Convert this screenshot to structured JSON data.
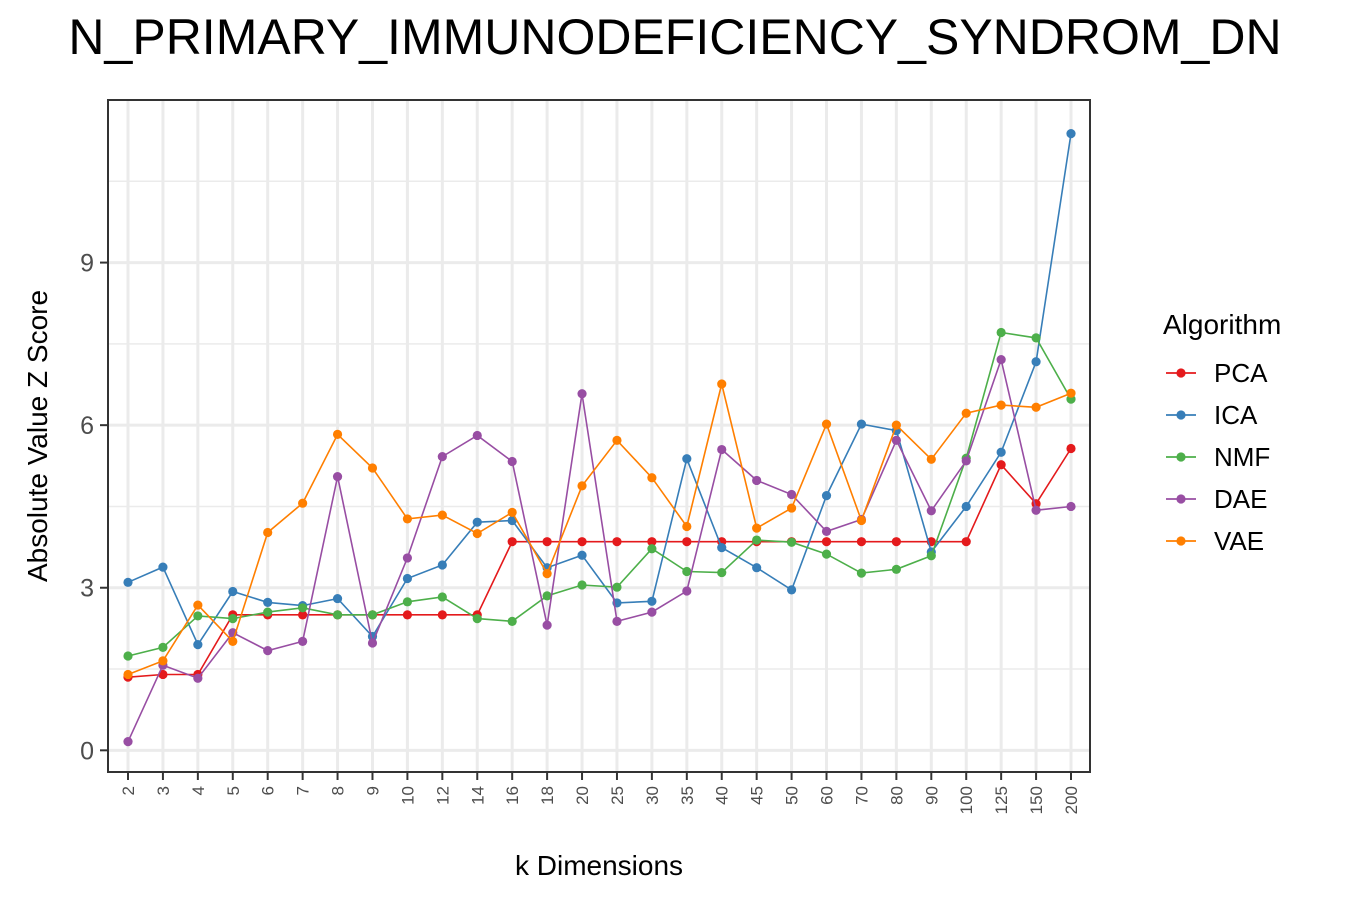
{
  "chart_data": {
    "type": "line",
    "title": "N_PRIMARY_IMMUNODEFICIENCY_SYNDROM_DN",
    "xlabel": "k Dimensions",
    "ylabel": "Absolute Value Z Score",
    "ylim": [
      -0.4,
      12.0
    ],
    "yticks": [
      0,
      3,
      6,
      9
    ],
    "grid": true,
    "legend_title": "Algorithm",
    "legend_position": "right",
    "categories": [
      "2",
      "3",
      "4",
      "5",
      "6",
      "7",
      "8",
      "9",
      "10",
      "12",
      "14",
      "16",
      "18",
      "20",
      "25",
      "30",
      "35",
      "40",
      "45",
      "50",
      "60",
      "70",
      "80",
      "90",
      "100",
      "125",
      "150",
      "200"
    ],
    "series": [
      {
        "name": "PCA",
        "color": "#e41a1c",
        "values": [
          1.35,
          1.4,
          1.4,
          2.5,
          2.5,
          2.5,
          2.5,
          2.5,
          2.5,
          2.5,
          2.5,
          3.85,
          3.85,
          3.85,
          3.85,
          3.85,
          3.85,
          3.85,
          3.85,
          3.85,
          3.85,
          3.85,
          3.85,
          3.85,
          3.85,
          5.27,
          4.55,
          5.57
        ]
      },
      {
        "name": "ICA",
        "color": "#377eb8",
        "values": [
          3.1,
          3.38,
          1.95,
          2.93,
          2.73,
          2.67,
          2.8,
          2.1,
          3.17,
          3.42,
          4.21,
          4.24,
          3.37,
          3.6,
          2.72,
          2.75,
          5.38,
          3.74,
          3.37,
          2.96,
          4.7,
          6.02,
          5.9,
          3.66,
          4.5,
          5.5,
          7.17,
          11.38
        ]
      },
      {
        "name": "NMF",
        "color": "#4daf4a",
        "values": [
          1.74,
          1.9,
          2.48,
          2.43,
          2.55,
          2.63,
          2.5,
          2.5,
          2.74,
          2.83,
          2.43,
          2.38,
          2.85,
          3.05,
          3.01,
          3.72,
          3.3,
          3.28,
          3.88,
          3.84,
          3.62,
          3.27,
          3.34,
          3.59,
          5.39,
          7.71,
          7.61,
          6.48
        ]
      },
      {
        "name": "DAE",
        "color": "#984ea3",
        "values": [
          0.16,
          1.57,
          1.33,
          2.17,
          1.84,
          2.01,
          5.05,
          1.98,
          3.55,
          5.42,
          5.81,
          5.33,
          2.31,
          6.58,
          2.38,
          2.55,
          2.94,
          5.55,
          4.98,
          4.72,
          4.04,
          4.26,
          5.72,
          4.42,
          5.34,
          7.21,
          4.43,
          4.5
        ]
      },
      {
        "name": "VAE",
        "color": "#ff7f00",
        "values": [
          1.4,
          1.65,
          2.68,
          2.01,
          4.02,
          4.56,
          5.83,
          5.21,
          4.27,
          4.34,
          4.0,
          4.39,
          3.26,
          4.88,
          5.72,
          5.03,
          4.13,
          6.76,
          4.1,
          4.47,
          6.02,
          4.24,
          6.0,
          5.37,
          6.22,
          6.37,
          6.33,
          6.59
        ]
      }
    ]
  }
}
